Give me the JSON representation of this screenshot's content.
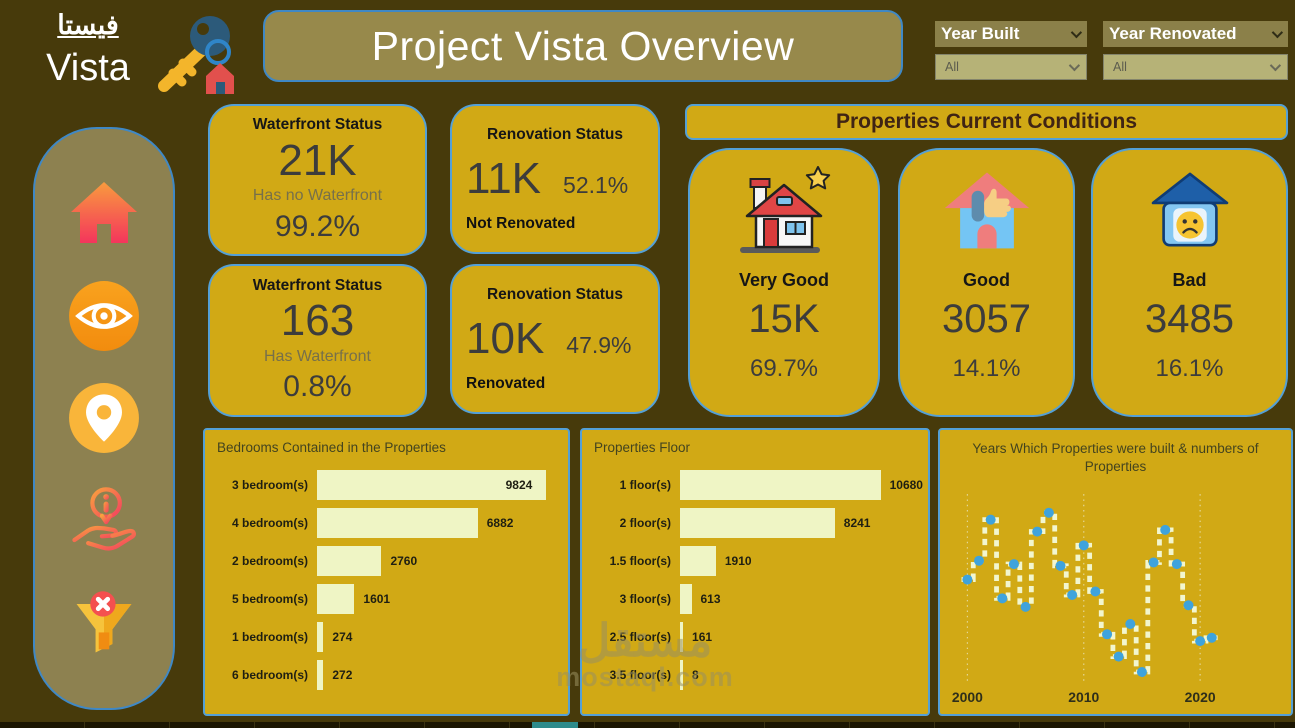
{
  "logo": {
    "arabic": "فيستا",
    "latin": "Vista"
  },
  "header": {
    "title": "Project Vista Overview"
  },
  "slicers": [
    {
      "label": "Year Built",
      "value": "All"
    },
    {
      "label": "Year Renovated",
      "value": "All"
    }
  ],
  "sidebar": {
    "icons": [
      "home-icon",
      "eye-icon",
      "location-pin-icon",
      "info-hand-icon",
      "clear-filter-icon"
    ]
  },
  "kpi_cards": [
    {
      "title": "Waterfront Status",
      "value": "21K",
      "sublabel": "Has no Waterfront",
      "percent": "99.2%"
    },
    {
      "title": "Renovation Status",
      "value": "11K",
      "percent": "52.1%",
      "sublabel": "Not Renovated"
    },
    {
      "title": "Waterfront Status",
      "value": "163",
      "sublabel": "Has Waterfront",
      "percent": "0.8%"
    },
    {
      "title": "Renovation Status",
      "value": "10K",
      "percent": "47.9%",
      "sublabel": "Renovated"
    }
  ],
  "conditions": {
    "header": "Properties Current Conditions",
    "cards": [
      {
        "label": "Very Good",
        "value": "15K",
        "percent": "69.7%",
        "icon": "house-star-icon"
      },
      {
        "label": "Good",
        "value": "3057",
        "percent": "14.1%",
        "icon": "house-thumbsup-icon"
      },
      {
        "label": "Bad",
        "value": "3485",
        "percent": "16.1%",
        "icon": "house-sad-icon"
      }
    ]
  },
  "chart_data": [
    {
      "id": "bedrooms",
      "type": "bar",
      "orientation": "horizontal",
      "title": "Bedrooms Contained in the Properties",
      "categories": [
        "3 bedroom(s)",
        "4 bedroom(s)",
        "2 bedroom(s)",
        "5 bedroom(s)",
        "1 bedroom(s)",
        "6 bedroom(s)"
      ],
      "values": [
        9824,
        6882,
        2760,
        1601,
        274,
        272
      ],
      "bar_color": "#eff5c5",
      "label_color": "#1f1f12",
      "grid": false
    },
    {
      "id": "floors",
      "type": "bar",
      "orientation": "horizontal",
      "title": "Properties Floor",
      "categories": [
        "1 floor(s)",
        "2 floor(s)",
        "1.5 floor(s)",
        "3 floor(s)",
        "2.5 floor(s)",
        "3.5 floor(s)"
      ],
      "values": [
        10680,
        8241,
        1910,
        613,
        161,
        8
      ],
      "bar_color": "#eff5c5",
      "label_color": "#1f1f12",
      "grid": false
    },
    {
      "id": "years",
      "type": "line",
      "style": "stepped-dashed",
      "title": "Years Which Properties were built & numbers of Properties",
      "x": [
        2000,
        2001,
        2002,
        2003,
        2004,
        2005,
        2006,
        2007,
        2008,
        2009,
        2010,
        2011,
        2012,
        2013,
        2014,
        2015,
        2016,
        2017,
        2018,
        2019,
        2020,
        2021
      ],
      "y_relative_0_100": [
        58,
        69,
        93,
        47,
        67,
        42,
        86,
        97,
        66,
        49,
        78,
        51,
        26,
        13,
        32,
        4,
        68,
        87,
        67,
        43,
        22,
        24
      ],
      "x_ticks": [
        2000,
        2010,
        2020
      ],
      "note": "no y-axis labels visible; values are relative heights estimated from plot",
      "line_color": "#f2f6cf",
      "marker_color": "#3fa3dc",
      "grid": "dotted vertical at x ticks"
    }
  ],
  "watermark": {
    "arabic": "مستقل",
    "latin": "mostaql.com"
  },
  "colors": {
    "background": "#473a0b",
    "panel_gold": "#d1a915",
    "olive": "#97894b",
    "slicer_fill": "#b6b277",
    "card_border": "#54a0d6",
    "bar_fill": "#eff5c5",
    "marker_blue": "#3fa3dc",
    "header_text": "#3f2414"
  }
}
